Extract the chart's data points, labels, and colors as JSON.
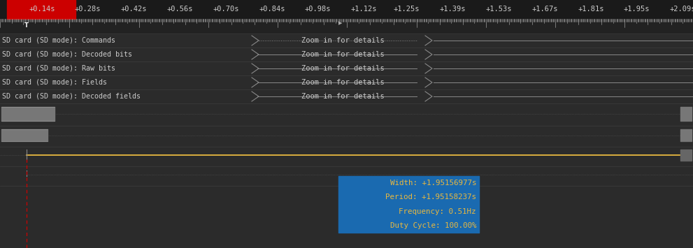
{
  "bg_color": "#2b2b2b",
  "header_bg": "#1a1a1a",
  "ruler_bg": "#222222",
  "tick_color": "#bbbbbb",
  "text_color": "#cccccc",
  "red_box_color": "#cc0000",
  "dashed_cursor_color": "#cc0000",
  "time_labels": [
    "+0.14s",
    "+0.28s",
    "+0.42s",
    "+0.56s",
    "+0.70s",
    "+0.84s",
    "+0.98s",
    "+1.12s",
    "+1.25s",
    "+1.39s",
    "+1.53s",
    "+1.67s",
    "+1.81s",
    "+1.95s",
    "+2.09s"
  ],
  "channel_labels": [
    "SD card (SD mode): Commands",
    "SD card (SD mode): Decoded bits",
    "SD card (SD mode): Raw bits",
    "SD card (SD mode): Fields",
    "SD card (SD mode): Decoded fields"
  ],
  "zoom_text": "Zoom in for details",
  "yellow_line_color": "#e8b840",
  "blue_box_color": "#1a6ab0",
  "tooltip_lines": [
    "Width: +1.95156977s",
    "Period: +1.95158237s",
    "Frequency: 0.51Hz",
    "Duty Cycle: 100.00%"
  ],
  "tooltip_color": "#e8b840",
  "fig_w": 9.91,
  "fig_h": 3.55,
  "dpi": 100
}
